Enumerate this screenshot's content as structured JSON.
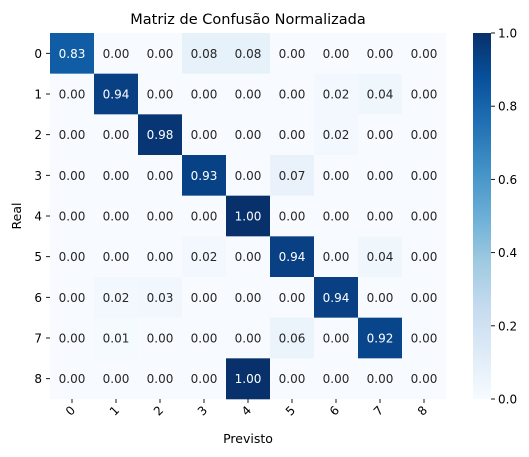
{
  "chart_data": {
    "type": "heatmap",
    "title": "Matriz de Confusão Normalizada",
    "xlabel": "Previsto",
    "ylabel": "Real",
    "x_categories": [
      "0",
      "1",
      "2",
      "3",
      "4",
      "5",
      "6",
      "7",
      "8"
    ],
    "y_categories": [
      "0",
      "1",
      "2",
      "3",
      "4",
      "5",
      "6",
      "7",
      "8"
    ],
    "values": [
      [
        0.83,
        0.0,
        0.0,
        0.08,
        0.08,
        0.0,
        0.0,
        0.0,
        0.0
      ],
      [
        0.0,
        0.94,
        0.0,
        0.0,
        0.0,
        0.0,
        0.02,
        0.04,
        0.0
      ],
      [
        0.0,
        0.0,
        0.98,
        0.0,
        0.0,
        0.0,
        0.02,
        0.0,
        0.0
      ],
      [
        0.0,
        0.0,
        0.0,
        0.93,
        0.0,
        0.07,
        0.0,
        0.0,
        0.0
      ],
      [
        0.0,
        0.0,
        0.0,
        0.0,
        1.0,
        0.0,
        0.0,
        0.0,
        0.0
      ],
      [
        0.0,
        0.0,
        0.0,
        0.02,
        0.0,
        0.94,
        0.0,
        0.04,
        0.0
      ],
      [
        0.0,
        0.02,
        0.03,
        0.0,
        0.0,
        0.0,
        0.94,
        0.0,
        0.0
      ],
      [
        0.0,
        0.01,
        0.0,
        0.0,
        0.0,
        0.06,
        0.0,
        0.92,
        0.0
      ],
      [
        0.0,
        0.0,
        0.0,
        0.0,
        1.0,
        0.0,
        0.0,
        0.0,
        0.0
      ]
    ],
    "value_format": "0.00",
    "colormap": "Blues",
    "color_low": "#f7fbff",
    "color_high": "#08306b",
    "colorbar": {
      "range": [
        0.0,
        1.0
      ],
      "ticks": [
        0.0,
        0.2,
        0.4,
        0.6,
        0.8,
        1.0
      ],
      "tick_labels": [
        "0.0",
        "0.2",
        "0.4",
        "0.6",
        "0.8",
        "1.0"
      ]
    },
    "grid": false,
    "x_tick_rotation": "45°"
  }
}
